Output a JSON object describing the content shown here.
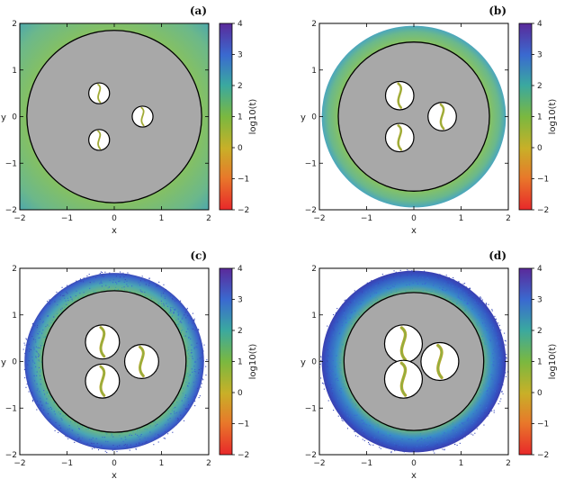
{
  "chart_data": [
    {
      "type": "heatmap",
      "panel_label": "(a)",
      "xlabel": "x",
      "ylabel": "y",
      "xlim": [
        -2,
        2
      ],
      "ylim": [
        -2,
        2
      ],
      "xticks": [
        -2,
        -1,
        0,
        1,
        2
      ],
      "yticks": [
        -2,
        -1,
        0,
        1,
        2
      ],
      "field_extent": "square",
      "outer_boundary_radius": 1.85,
      "inner_bodies": [
        {
          "x": -0.32,
          "y": 0.5,
          "r": 0.22
        },
        {
          "x": 0.6,
          "y": 0.0,
          "r": 0.22
        },
        {
          "x": -0.32,
          "y": -0.5,
          "r": 0.22
        }
      ],
      "colorbar": {
        "label": "log10(t)",
        "ticks": [
          4,
          3,
          2,
          1,
          0,
          -1,
          -2
        ],
        "range": [
          -2,
          4
        ]
      }
    },
    {
      "type": "heatmap",
      "panel_label": "(b)",
      "xlabel": "x",
      "ylabel": "y",
      "xlim": [
        -2,
        2
      ],
      "ylim": [
        -2,
        2
      ],
      "xticks": [
        -2,
        -1,
        0,
        1,
        2
      ],
      "yticks": [
        -2,
        -1,
        0,
        1,
        2
      ],
      "field_extent": "disk",
      "field_radius": 1.95,
      "outer_boundary_radius": 1.6,
      "inner_bodies": [
        {
          "x": -0.3,
          "y": 0.45,
          "r": 0.3
        },
        {
          "x": 0.6,
          "y": 0.0,
          "r": 0.3
        },
        {
          "x": -0.3,
          "y": -0.45,
          "r": 0.3
        }
      ],
      "colorbar": {
        "label": "log10(t)",
        "ticks": [
          4,
          3,
          2,
          1,
          0,
          -1,
          -2
        ],
        "range": [
          -2,
          4
        ]
      }
    },
    {
      "type": "heatmap",
      "panel_label": "(c)",
      "xlabel": "x",
      "ylabel": "y",
      "xlim": [
        -2,
        2
      ],
      "ylim": [
        -2,
        2
      ],
      "xticks": [
        -2,
        -1,
        0,
        1,
        2
      ],
      "yticks": [
        -2,
        -1,
        0,
        1,
        2
      ],
      "field_extent": "ring",
      "field_radius": 1.9,
      "outer_boundary_radius": 1.52,
      "inner_bodies": [
        {
          "x": -0.25,
          "y": 0.42,
          "r": 0.36
        },
        {
          "x": 0.58,
          "y": 0.0,
          "r": 0.36
        },
        {
          "x": -0.25,
          "y": -0.42,
          "r": 0.36
        }
      ],
      "colorbar": {
        "label": "log10(t)",
        "ticks": [
          4,
          3,
          2,
          1,
          0,
          -1,
          -2
        ],
        "range": [
          -2,
          4
        ]
      }
    },
    {
      "type": "heatmap",
      "panel_label": "(d)",
      "xlabel": "x",
      "ylabel": "y",
      "xlim": [
        -2,
        2
      ],
      "ylim": [
        -2,
        2
      ],
      "xticks": [
        -2,
        -1,
        0,
        1,
        2
      ],
      "yticks": [
        -2,
        -1,
        0,
        1,
        2
      ],
      "field_extent": "ring",
      "field_radius": 1.95,
      "outer_boundary_radius": 1.48,
      "inner_bodies": [
        {
          "x": -0.22,
          "y": 0.38,
          "r": 0.4
        },
        {
          "x": 0.55,
          "y": 0.0,
          "r": 0.4
        },
        {
          "x": -0.22,
          "y": -0.38,
          "r": 0.4
        }
      ],
      "colorbar": {
        "label": "log10(t)",
        "ticks": [
          4,
          3,
          2,
          1,
          0,
          -1,
          -2
        ],
        "range": [
          -2,
          4
        ]
      }
    }
  ]
}
